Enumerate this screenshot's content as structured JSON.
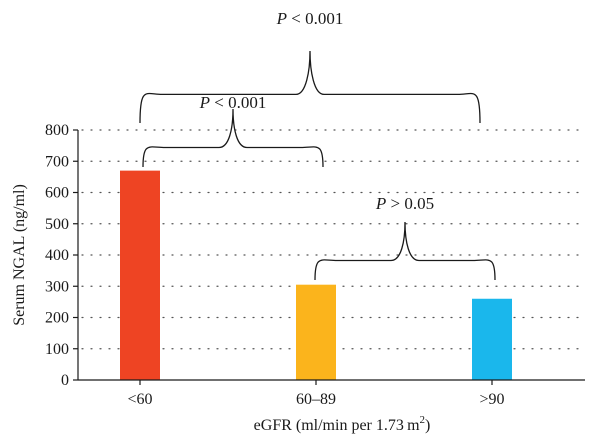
{
  "chart_data": {
    "type": "bar",
    "categories": [
      "<60",
      "60–89",
      ">90"
    ],
    "values": [
      670,
      305,
      260
    ],
    "colors": [
      "#ee4423",
      "#fbb41c",
      "#1ab7ec"
    ],
    "xlabel": {
      "prefix": "eGFR (ml/min per 1.73 m",
      "superscript": "2",
      "suffix": ")"
    },
    "ylabel": "Serum NGAL (ng/ml)",
    "ylim": [
      0,
      800
    ],
    "yticks": [
      "0",
      "100",
      "200",
      "300",
      "400",
      "500",
      "600",
      "700",
      "800"
    ],
    "grid": "dotted horizontal",
    "annotations": [
      {
        "p": "P",
        "op": " < ",
        "val": "0.001",
        "from": 0,
        "to": 2
      },
      {
        "p": "P",
        "op": " < ",
        "val": "0.001",
        "from": 0,
        "to": 1
      },
      {
        "p": "P",
        "op": " > ",
        "val": "0.05",
        "from": 1,
        "to": 2
      }
    ]
  }
}
